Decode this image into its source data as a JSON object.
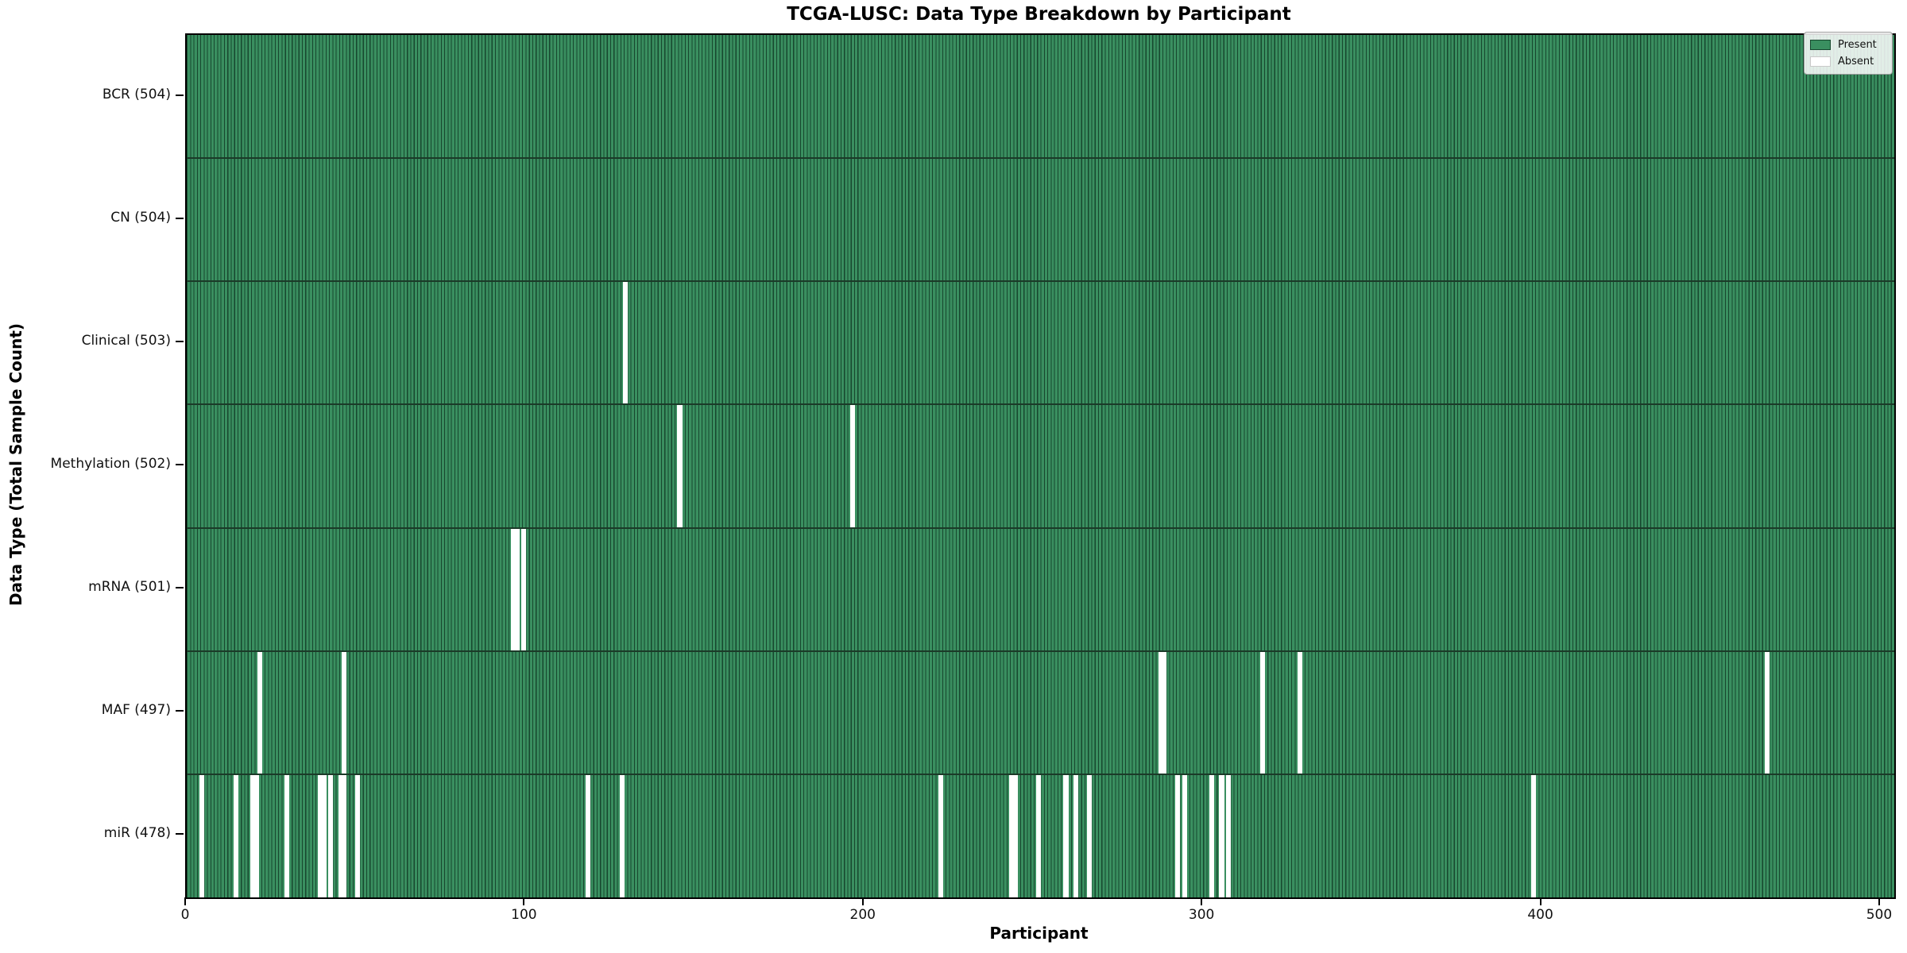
{
  "title": "TCGA-LUSC: Data Type Breakdown by Participant",
  "chart_data": {
    "type": "heatmap",
    "title": "TCGA-LUSC: Data Type Breakdown by Participant",
    "xlabel": "Participant",
    "ylabel": "Data Type (Total Sample Count)",
    "x_ticks": [
      0,
      100,
      200,
      300,
      400,
      500
    ],
    "x_max": 504,
    "total_participants": 504,
    "grid": false,
    "legend_position": "upper right",
    "legend": {
      "entries": [
        {
          "label": "Present",
          "color": "#3a8f60"
        },
        {
          "label": "Absent",
          "color": "#ffffff"
        }
      ]
    },
    "colors": {
      "present": "#3a8f60",
      "absent": "#ffffff",
      "bar_edge": "#17472e",
      "row_boundary": "#1b3a28",
      "axis": "#000000"
    },
    "rows": [
      {
        "label": "BCR (504)",
        "name": "BCR",
        "total": 504,
        "missing": []
      },
      {
        "label": "CN (504)",
        "name": "CN",
        "total": 504,
        "missing": []
      },
      {
        "label": "Clinical (503)",
        "name": "Clinical",
        "total": 503,
        "missing": [
          129
        ]
      },
      {
        "label": "Methylation (502)",
        "name": "Methylation",
        "total": 502,
        "missing": [
          145,
          196
        ]
      },
      {
        "label": "mRNA (501)",
        "name": "mRNA",
        "total": 501,
        "missing": [
          96,
          97,
          99
        ]
      },
      {
        "label": "MAF (497)",
        "name": "MAF",
        "total": 497,
        "missing": [
          21,
          46,
          287,
          288,
          317,
          328,
          466
        ]
      },
      {
        "label": "miR (478)",
        "name": "miR",
        "total": 478,
        "missing": [
          4,
          14,
          19,
          20,
          29,
          39,
          40,
          42,
          45,
          46,
          50,
          118,
          128,
          222,
          243,
          244,
          251,
          259,
          262,
          266,
          292,
          294,
          302,
          305,
          307,
          397
        ]
      }
    ]
  }
}
